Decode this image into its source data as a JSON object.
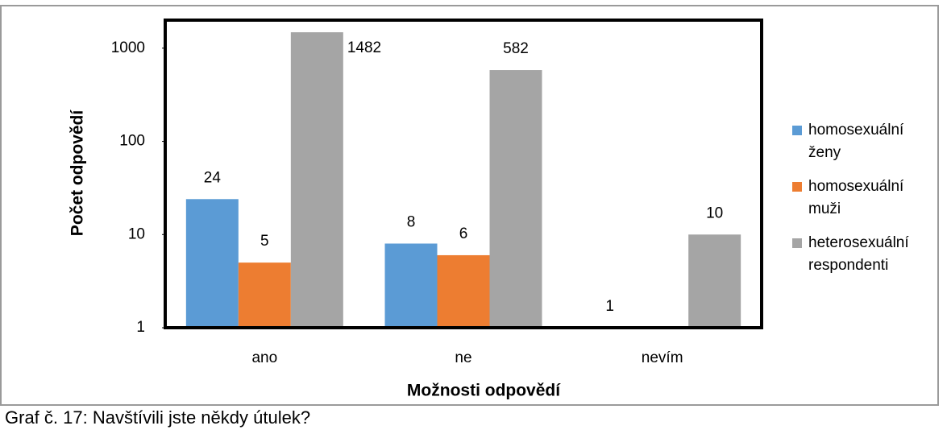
{
  "chart_data": {
    "type": "bar",
    "x_label": "Možnosti odpovědí",
    "y_label": "Počet odpovědí",
    "caption": "Graf č. 17: Navštívili jste někdy útulek?",
    "categories": [
      "ano",
      "ne",
      "nevím"
    ],
    "series": [
      {
        "name": "homosexuální ženy",
        "color": "#5b9bd5",
        "values": [
          24,
          8,
          1
        ]
      },
      {
        "name": "homosexuální muži",
        "color": "#ed7d31",
        "values": [
          5,
          6,
          null
        ]
      },
      {
        "name": "heterosexuální respondenti",
        "color": "#a5a5a5",
        "values": [
          1482,
          582,
          10
        ]
      }
    ],
    "log_scale": true,
    "ylim": [
      1,
      2000
    ],
    "yticks": [
      1,
      10,
      100,
      1000
    ],
    "legend": "right"
  }
}
